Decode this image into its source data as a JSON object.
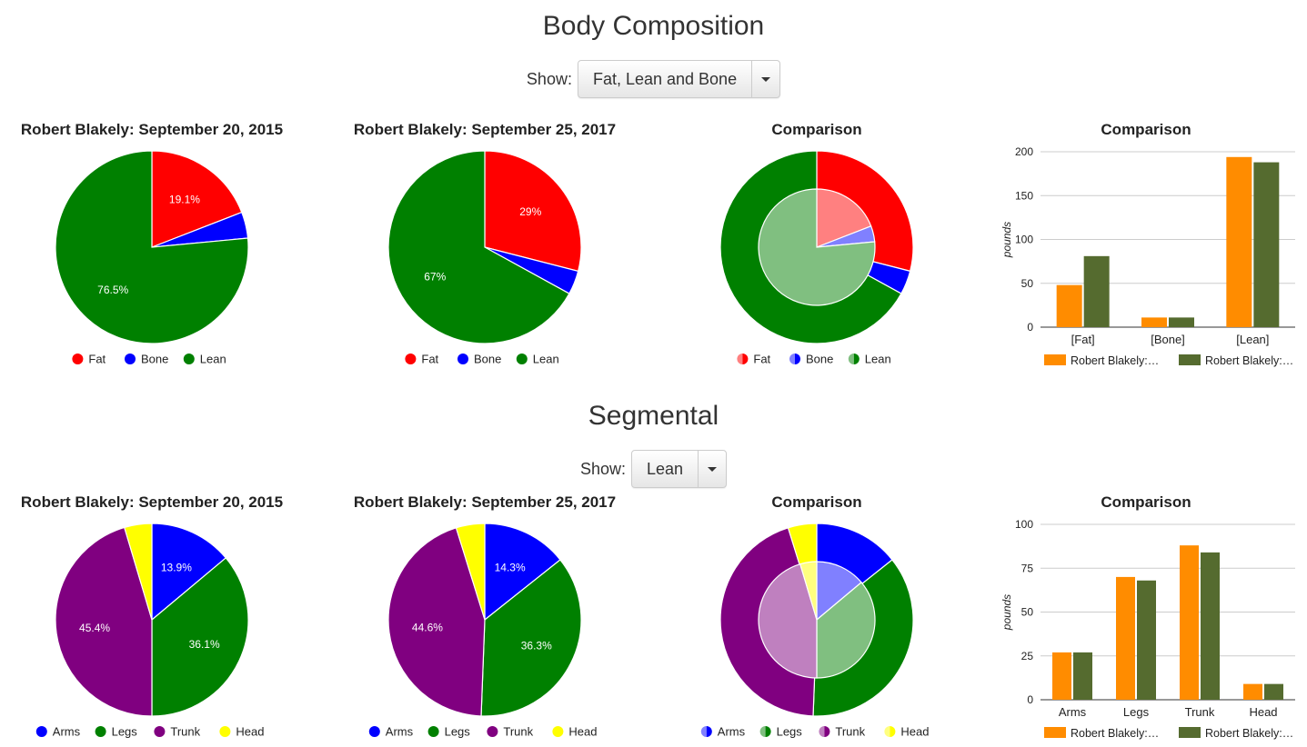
{
  "sections": [
    {
      "title": "Body Composition",
      "show_label": "Show:",
      "dropdown_value": "Fat, Lean and Bone",
      "categories": [
        "Fat",
        "Bone",
        "Lean"
      ],
      "colors": [
        "#ff0000",
        "#0000ff",
        "#008000"
      ],
      "light_colors": [
        "#ff8080",
        "#8080ff",
        "#80bf80"
      ],
      "pies": [
        {
          "title": "Robert Blakely: September 20, 2015",
          "values": [
            19.1,
            4.4,
            76.5
          ],
          "labels": [
            "19.1%",
            "",
            "76.5%"
          ]
        },
        {
          "title": "Robert Blakely: September 25, 2017",
          "values": [
            29,
            4,
            67
          ],
          "labels": [
            "29%",
            "",
            "67%"
          ]
        }
      ],
      "comparison_title": "Comparison",
      "bar": {
        "title": "Comparison",
        "categories": [
          "[Fat]",
          "[Bone]",
          "[Lean]"
        ],
        "ylabel": "pounds",
        "yticks": [
          0,
          50,
          100,
          150,
          200
        ],
        "ymax": 200,
        "series": [
          {
            "name": "Robert Blakely:…",
            "color": "#ff8c00",
            "values": [
              48,
              11,
              194
            ]
          },
          {
            "name": "Robert Blakely:…",
            "color": "#556b2f",
            "values": [
              81,
              11,
              188
            ]
          }
        ]
      }
    },
    {
      "title": "Segmental",
      "show_label": "Show:",
      "dropdown_value": "Lean",
      "categories": [
        "Arms",
        "Legs",
        "Trunk",
        "Head"
      ],
      "colors": [
        "#0000ff",
        "#008000",
        "#800080",
        "#ffff00"
      ],
      "light_colors": [
        "#8080ff",
        "#80bf80",
        "#bf80bf",
        "#ffff80"
      ],
      "pies": [
        {
          "title": "Robert Blakely: September 20, 2015",
          "values": [
            13.9,
            36.1,
            45.4,
            4.6
          ],
          "labels": [
            "13.9%",
            "36.1%",
            "45.4%",
            ""
          ]
        },
        {
          "title": "Robert Blakely: September 25, 2017",
          "values": [
            14.3,
            36.3,
            44.6,
            4.8
          ],
          "labels": [
            "14.3%",
            "36.3%",
            "44.6%",
            ""
          ]
        }
      ],
      "comparison_title": "Comparison",
      "bar": {
        "title": "Comparison",
        "categories": [
          "Arms",
          "Legs",
          "Trunk",
          "Head"
        ],
        "ylabel": "pounds",
        "yticks": [
          0,
          25,
          50,
          75,
          100
        ],
        "ymax": 100,
        "series": [
          {
            "name": "Robert Blakely:…",
            "color": "#ff8c00",
            "values": [
              27,
              70,
              88,
              9
            ]
          },
          {
            "name": "Robert Blakely:…",
            "color": "#556b2f",
            "values": [
              27,
              68,
              84,
              9
            ]
          }
        ]
      }
    }
  ],
  "chart_data": [
    {
      "type": "pie",
      "title": "Robert Blakely: September 20, 2015",
      "categories": [
        "Fat",
        "Bone",
        "Lean"
      ],
      "values": [
        19.1,
        4.4,
        76.5
      ]
    },
    {
      "type": "pie",
      "title": "Robert Blakely: September 25, 2017",
      "categories": [
        "Fat",
        "Bone",
        "Lean"
      ],
      "values": [
        29,
        4,
        67
      ]
    },
    {
      "type": "bar",
      "title": "Comparison",
      "categories": [
        "[Fat]",
        "[Bone]",
        "[Lean]"
      ],
      "ylabel": "pounds",
      "ylim": [
        0,
        200
      ],
      "series": [
        {
          "name": "Robert Blakely:…",
          "values": [
            48,
            11,
            194
          ]
        },
        {
          "name": "Robert Blakely:…",
          "values": [
            81,
            11,
            188
          ]
        }
      ]
    },
    {
      "type": "pie",
      "title": "Robert Blakely: September 20, 2015",
      "categories": [
        "Arms",
        "Legs",
        "Trunk",
        "Head"
      ],
      "values": [
        13.9,
        36.1,
        45.4,
        4.6
      ]
    },
    {
      "type": "pie",
      "title": "Robert Blakely: September 25, 2017",
      "categories": [
        "Arms",
        "Legs",
        "Trunk",
        "Head"
      ],
      "values": [
        14.3,
        36.3,
        44.6,
        4.8
      ]
    },
    {
      "type": "bar",
      "title": "Comparison",
      "categories": [
        "Arms",
        "Legs",
        "Trunk",
        "Head"
      ],
      "ylabel": "pounds",
      "ylim": [
        0,
        100
      ],
      "series": [
        {
          "name": "Robert Blakely:…",
          "values": [
            27,
            70,
            88,
            9
          ]
        },
        {
          "name": "Robert Blakely:…",
          "values": [
            27,
            68,
            84,
            9
          ]
        }
      ]
    }
  ]
}
